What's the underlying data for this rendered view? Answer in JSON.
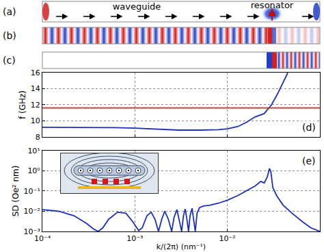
{
  "panels": [
    {
      "label": "(a)",
      "texts": [
        "waveguide",
        "resonator"
      ]
    },
    {
      "label": "(b)"
    },
    {
      "label": "(c)"
    }
  ],
  "chart_data": [
    {
      "type": "line",
      "label": "(d)",
      "ylabel": "f (GHz)",
      "log": "x",
      "grid": true,
      "tick_labels": "y",
      "xlim": [
        0.0001,
        0.1
      ],
      "xticks": [
        {
          "value": 0.0001,
          "label": "10⁻⁴"
        },
        {
          "value": 0.001,
          "label": "10⁻³"
        },
        {
          "value": 0.01,
          "label": "10⁻²"
        },
        {
          "value": 0.1,
          "label": "10⁻¹"
        }
      ],
      "ylim": [
        8,
        16
      ],
      "yticks": [
        8,
        10,
        12,
        14,
        16
      ],
      "series": [
        {
          "color": "#1a2fc0",
          "x": [
            0.0001,
            0.0003,
            0.0006,
            0.001,
            0.0015,
            0.002,
            0.003,
            0.005,
            0.008,
            0.01,
            0.013,
            0.016,
            0.02,
            0.025,
            0.03,
            0.035,
            0.04,
            0.045
          ],
          "values": [
            9.2,
            9.2,
            9.15,
            9.1,
            9.0,
            8.95,
            8.85,
            8.85,
            8.9,
            9.0,
            9.3,
            9.8,
            10.5,
            10.9,
            12.0,
            13.4,
            14.8,
            16
          ]
        },
        {
          "color": "#e0201e",
          "x": [
            0.0001,
            0.1
          ],
          "values": [
            11.6,
            11.6
          ]
        }
      ]
    },
    {
      "type": "line",
      "label": "(e)",
      "xlabel": "k/(2π) (nm⁻¹)",
      "ylabel": "SD (Oe² nm)",
      "log": true,
      "grid": true,
      "xlim": [
        0.0001,
        0.1
      ],
      "xticks": [
        {
          "value": 0.0001,
          "label": "10⁻⁴"
        },
        {
          "value": 0.001,
          "label": "10⁻³"
        },
        {
          "value": 0.01,
          "label": "10⁻²"
        },
        {
          "value": 0.1,
          "label": "10⁻¹"
        }
      ],
      "ylim": [
        0.001,
        10
      ],
      "yticks": [
        {
          "value": 0.001,
          "label": "10⁻³"
        },
        {
          "value": 0.01,
          "label": "10⁻²"
        },
        {
          "value": 0.1,
          "label": "10⁻¹"
        },
        {
          "value": 1,
          "label": "10⁰"
        },
        {
          "value": 10,
          "label": "10¹"
        }
      ],
      "series": [
        {
          "color": "#1a2fc0",
          "x": [
            0.0001,
            0.00015,
            0.00022,
            0.0003,
            0.00036,
            0.0004,
            0.00045,
            0.00052,
            0.00065,
            0.0008,
            0.00095,
            0.0011,
            0.0012,
            0.00135,
            0.0015,
            0.00165,
            0.0018,
            0.00195,
            0.0021,
            0.0023,
            0.0025,
            0.00265,
            0.00285,
            0.003,
            0.0032,
            0.00335,
            0.0035,
            0.00365,
            0.0038,
            0.00395,
            0.00415,
            0.00435,
            0.0045,
            0.0047,
            0.005,
            0.0055,
            0.0065,
            0.008,
            0.01,
            0.013,
            0.016,
            0.02,
            0.023,
            0.025,
            0.027,
            0.0285,
            0.0295,
            0.031,
            0.034,
            0.04,
            0.05,
            0.065,
            0.08,
            0.1
          ],
          "values": [
            0.012,
            0.01,
            0.006,
            0.0025,
            0.0013,
            0.001,
            0.0015,
            0.004,
            0.009,
            0.008,
            0.003,
            0.0011,
            0.0015,
            0.006,
            0.009,
            0.004,
            0.001,
            0.004,
            0.01,
            0.004,
            0.001,
            0.005,
            0.012,
            0.004,
            0.001,
            0.006,
            0.013,
            0.004,
            0.001,
            0.006,
            0.014,
            0.003,
            0.001,
            0.008,
            0.015,
            0.018,
            0.02,
            0.025,
            0.035,
            0.06,
            0.1,
            0.18,
            0.3,
            0.25,
            0.5,
            1.3,
            0.9,
            0.15,
            0.06,
            0.02,
            0.008,
            0.003,
            0.0015,
            0.001
          ]
        }
      ]
    }
  ]
}
